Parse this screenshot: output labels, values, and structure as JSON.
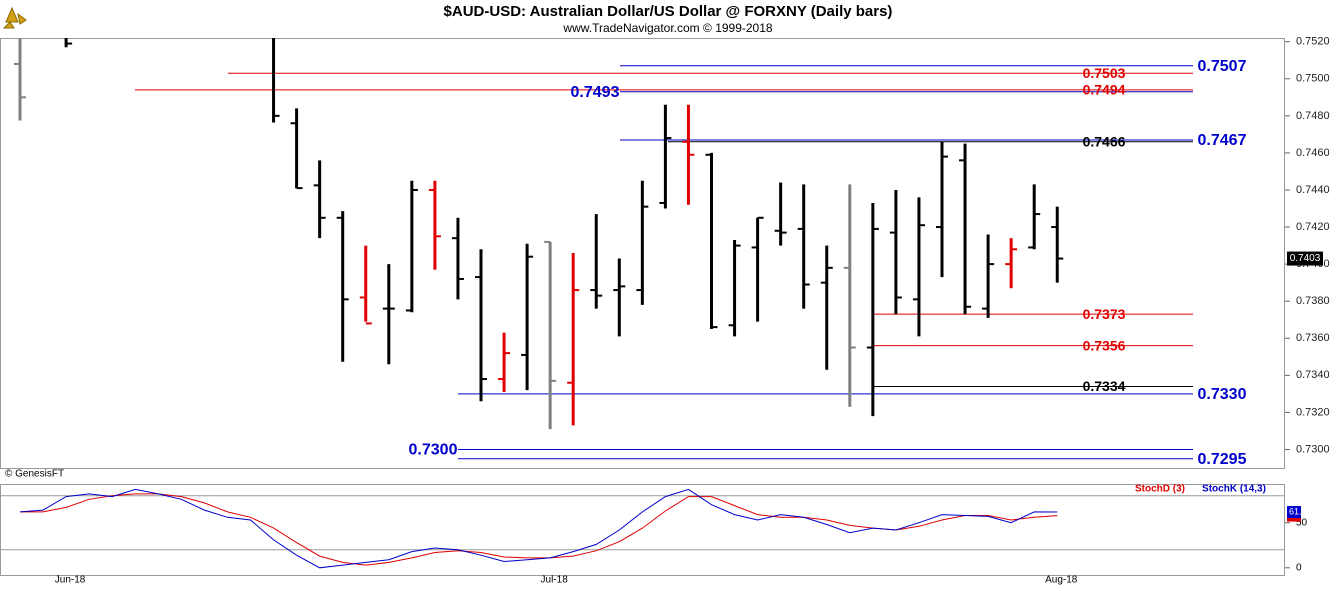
{
  "chart_data": [
    {
      "type": "ohlc",
      "title": "$AUD-USD:  Australian Dollar/US Dollar @ FORXNY  (Daily bars)",
      "subtitle": "www.TradeNavigator.com © 1999-2018",
      "source": "© GenesisFT",
      "categories": [
        null,
        null,
        "Jun-18",
        null,
        null,
        null,
        null,
        null,
        null,
        null,
        null,
        null,
        null,
        null,
        null,
        null,
        null,
        null,
        null,
        null,
        null,
        null,
        null,
        "Jul-18",
        null,
        null,
        null,
        null,
        null,
        null,
        null,
        null,
        null,
        null,
        null,
        null,
        null,
        null,
        null,
        null,
        null,
        null,
        null,
        null,
        null,
        "Aug-18"
      ],
      "series": [
        {
          "open": [
            0.7508,
            null,
            0.7528,
            null,
            null,
            null,
            null,
            null,
            null,
            null,
            null,
            0.7525,
            0.7476,
            0.74425,
            0.7425,
            0.7382,
            0.7376,
            0.7375,
            0.744,
            0.7414,
            0.7393,
            0.7338,
            0.7351,
            0.7412,
            0.7336,
            0.7386,
            0.7386,
            0.7386,
            0.7433,
            0.7466,
            0.7459,
            0.7367,
            0.7409,
            0.7418,
            0.7419,
            0.739,
            0.7398,
            0.7355,
            0.7417,
            0.7381,
            0.742,
            0.7456,
            0.7376,
            0.74,
            0.7409,
            0.742
          ],
          "high": [
            0.7525,
            null,
            0.7535,
            null,
            null,
            null,
            null,
            null,
            null,
            null,
            null,
            0.753,
            0.7484,
            0.7456,
            0.74286,
            0.741,
            0.74,
            0.7445,
            0.7445,
            0.7425,
            0.7408,
            0.7363,
            0.7411,
            0.7412,
            0.7406,
            0.7427,
            0.7403,
            0.7445,
            0.7486,
            0.7486,
            0.746,
            0.7413,
            0.7425,
            0.7444,
            0.7443,
            0.741,
            0.7443,
            0.7433,
            0.744,
            0.7436,
            0.7466,
            0.7465,
            0.7416,
            0.7414,
            0.7443,
            0.7431
          ],
          "low": [
            0.74775,
            null,
            0.7517,
            null,
            null,
            null,
            null,
            null,
            null,
            null,
            null,
            0.74764,
            0.74409,
            0.7414,
            0.73473,
            0.7369,
            0.7346,
            0.7374,
            0.7397,
            0.7381,
            0.7326,
            0.7331,
            0.7332,
            0.7311,
            0.7313,
            0.7376,
            0.7361,
            0.7378,
            0.743,
            0.7432,
            0.7365,
            0.7361,
            0.7369,
            0.741,
            0.7376,
            0.7343,
            0.7323,
            0.7318,
            0.7373,
            0.7361,
            0.7393,
            0.7373,
            0.7371,
            0.7387,
            0.7408,
            0.739
          ],
          "close": [
            0.749,
            null,
            0.7519,
            null,
            null,
            null,
            null,
            null,
            null,
            null,
            null,
            0.748,
            0.7441,
            0.7425,
            0.7381,
            0.7368,
            0.7376,
            0.744,
            0.7415,
            0.7392,
            0.7338,
            0.7352,
            0.7404,
            0.7337,
            0.7386,
            0.7383,
            0.7388,
            0.7431,
            0.7468,
            0.7459,
            0.7366,
            0.741,
            0.7425,
            0.7417,
            0.7389,
            0.7398,
            0.7355,
            0.7419,
            0.7382,
            0.7421,
            0.7458,
            0.7377,
            0.74,
            0.7408,
            0.7427,
            0.7403
          ],
          "colors": [
            "#808080",
            "#000000",
            "#000000",
            "#000000",
            "#000000",
            "#000000",
            "#000000",
            "#000000",
            "#000000",
            "#000000",
            "#000000",
            "#000000",
            "#000000",
            "#000000",
            "#000000",
            "#e00000",
            "#000000",
            "#000000",
            "#e00000",
            "#000000",
            "#000000",
            "#e00000",
            "#000000",
            "#808080",
            "#e00000",
            "#000000",
            "#000000",
            "#000000",
            "#000000",
            "#e00000",
            "#000000",
            "#000000",
            "#000000",
            "#000000",
            "#000000",
            "#000000",
            "#808080",
            "#000000",
            "#000000",
            "#000000",
            "#000000",
            "#000000",
            "#000000",
            "#e00000",
            "#000000",
            "#000000"
          ]
        }
      ],
      "levels": [
        {
          "value": 0.7507,
          "label": "0.7507",
          "color": "#0000cc"
        },
        {
          "value": 0.7503,
          "label": "0.7503",
          "color": "#e00000"
        },
        {
          "value": 0.7494,
          "label": "0.7494",
          "color": "#e00000"
        },
        {
          "value": 0.7493,
          "label": "0.7493",
          "color": "#0000cc"
        },
        {
          "value": 0.7466,
          "label": "0.7466",
          "color": "#000000"
        },
        {
          "value": 0.7467,
          "label": "0.7467",
          "color": "#0000cc"
        },
        {
          "value": 0.7373,
          "label": "0.7373",
          "color": "#e00000"
        },
        {
          "value": 0.7356,
          "label": "0.7356",
          "color": "#e00000"
        },
        {
          "value": 0.7334,
          "label": "0.7334",
          "color": "#000000"
        },
        {
          "value": 0.733,
          "label": "0.7330",
          "color": "#0000cc"
        },
        {
          "value": 0.73,
          "label": "0.7300",
          "color": "#0000cc"
        },
        {
          "value": 0.7295,
          "label": "0.7295",
          "color": "#0000cc"
        }
      ],
      "ylim": [
        0.729,
        0.7522
      ],
      "yticks": [
        {
          "value": 0.73,
          "label": "0.7300"
        },
        {
          "value": 0.732,
          "label": "0.7320"
        },
        {
          "value": 0.734,
          "label": "0.7340"
        },
        {
          "value": 0.736,
          "label": "0.7360"
        },
        {
          "value": 0.738,
          "label": "0.7380"
        },
        {
          "value": 0.74,
          "label": "0.7400"
        },
        {
          "value": 0.742,
          "label": "0.7420"
        },
        {
          "value": 0.744,
          "label": "0.7440"
        },
        {
          "value": 0.746,
          "label": "0.7460"
        },
        {
          "value": 0.748,
          "label": "0.7480"
        },
        {
          "value": 0.75,
          "label": "0.7500"
        },
        {
          "value": 0.752,
          "label": "0.7520"
        }
      ]
    },
    {
      "type": "line",
      "series": [
        {
          "name": "StochD (3)",
          "color": "#e00000",
          "values": [
            62,
            62,
            67,
            76,
            80,
            82,
            82,
            79,
            72,
            62,
            56,
            44,
            28,
            13,
            6,
            3,
            6,
            11,
            17,
            19,
            17,
            12,
            11,
            11,
            13,
            19,
            29,
            44,
            63,
            79,
            79,
            69,
            59,
            56,
            56,
            53,
            47,
            44,
            42,
            46,
            53,
            58,
            58,
            53,
            56,
            57.95
          ]
        },
        {
          "name": "StochK (14,3)",
          "color": "#0000cc",
          "values": [
            62,
            64,
            79,
            82,
            79,
            87,
            82,
            76,
            64,
            56,
            53,
            31,
            14,
            0,
            3,
            6,
            9,
            18,
            22,
            20,
            14,
            7,
            9,
            11,
            18,
            26,
            42,
            62,
            79,
            87,
            70,
            59,
            53,
            59,
            56,
            48,
            39,
            44,
            42,
            50,
            59,
            58,
            57,
            50,
            62,
            61.88
          ]
        }
      ],
      "ylim": [
        -8,
        93
      ],
      "yticks": [
        0,
        50
      ],
      "levels": [
        20,
        80
      ]
    }
  ]
}
